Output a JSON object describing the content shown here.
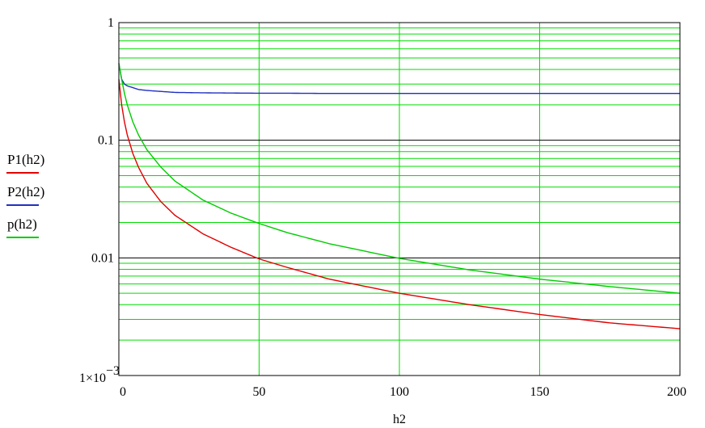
{
  "chart_data": {
    "type": "line",
    "xlabel": "h2",
    "ylabel": "",
    "xlim": [
      0,
      200
    ],
    "ylim": [
      0.001,
      1
    ],
    "yscale": "log",
    "grid": true,
    "grid_color": "#00dd00",
    "legend_position": "left",
    "x_ticks": [
      0,
      50,
      100,
      150,
      200
    ],
    "x_tick_labels": [
      "0",
      "50",
      "100",
      "150",
      "200"
    ],
    "y_ticks": [
      0.001,
      0.01,
      0.1,
      1
    ],
    "y_tick_labels": [
      "1×10",
      "0.01",
      "0.1",
      "1"
    ],
    "y_min_label_exponent": "−3",
    "x": [
      0,
      1,
      2,
      3,
      5,
      7,
      10,
      15,
      20,
      30,
      40,
      50,
      60,
      75,
      100,
      125,
      150,
      175,
      200
    ],
    "series": [
      {
        "name": "P1(h2)",
        "color": "#e00000",
        "values": [
          0.33,
          0.2,
          0.143,
          0.111,
          0.077,
          0.059,
          0.043,
          0.03,
          0.023,
          0.016,
          0.0123,
          0.0098,
          0.0083,
          0.0066,
          0.005,
          0.004,
          0.0033,
          0.0028,
          0.0025
        ]
      },
      {
        "name": "P2(h2)",
        "color": "#2030c0",
        "values": [
          0.45,
          0.33,
          0.3,
          0.29,
          0.28,
          0.27,
          0.265,
          0.26,
          0.255,
          0.253,
          0.252,
          0.251,
          0.251,
          0.25,
          0.25,
          0.25,
          0.25,
          0.25,
          0.25
        ]
      },
      {
        "name": "p(h2)",
        "color": "#00cc00",
        "values": [
          0.45,
          0.33,
          0.25,
          0.2,
          0.143,
          0.111,
          0.083,
          0.059,
          0.045,
          0.031,
          0.024,
          0.0196,
          0.0164,
          0.0132,
          0.0099,
          0.0079,
          0.0066,
          0.0057,
          0.005
        ]
      }
    ]
  }
}
